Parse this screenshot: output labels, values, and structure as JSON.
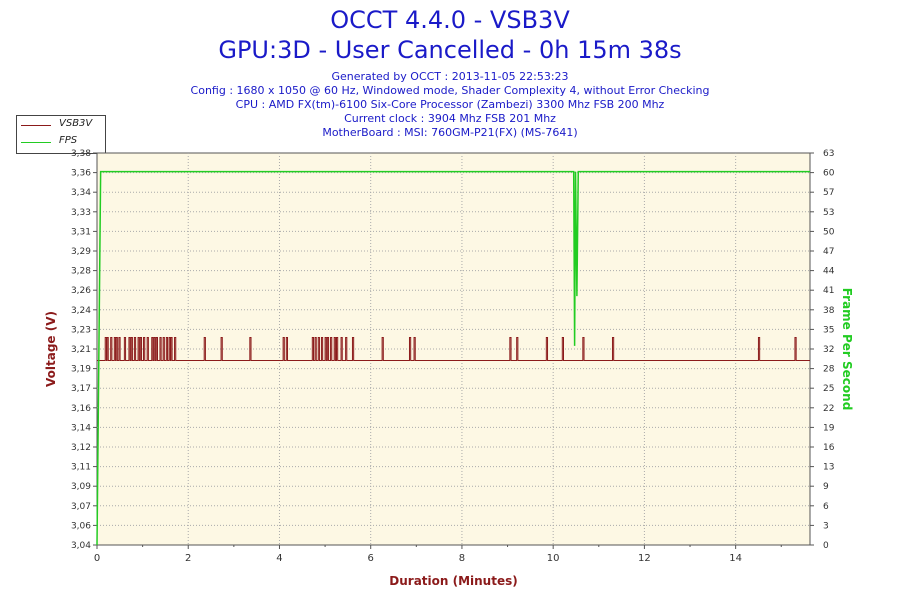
{
  "title": "OCCT 4.4.0 - VSB3V",
  "subtitle": "GPU:3D - User Cancelled - 0h 15m 38s",
  "info_lines": [
    "Generated by OCCT : 2013-11-05 22:53:23",
    "Config : 1680 x 1050 @ 60 Hz, Windowed mode, Shader Complexity 4, without Error Checking",
    "CPU : AMD FX(tm)-6100 Six-Core Processor (Zambezi) 3300 Mhz FSB 200 Mhz",
    "Current clock : 3904 Mhz FSB 201 Mhz",
    "MotherBoard : MSI: 760GM-P21(FX) (MS-7641)"
  ],
  "legend": [
    {
      "label": "VSB3V",
      "color": "#8b1a1a"
    },
    {
      "label": "FPS",
      "color": "#22cc22"
    }
  ],
  "chart_data": {
    "type": "line",
    "xlabel": "Duration (Minutes)",
    "ylabel_left": "Voltage (V)",
    "ylabel_right": "Frame Per Second",
    "xlim": [
      0,
      15.63
    ],
    "ylim_left": [
      3.04,
      3.38
    ],
    "ylim_right": [
      0,
      63
    ],
    "x_ticks": [
      "0",
      "2",
      "4",
      "6",
      "8",
      "10",
      "12",
      "14"
    ],
    "y_ticks_left": [
      "3,04",
      "3,06",
      "3,07",
      "3,09",
      "3,11",
      "3,12",
      "3,14",
      "3,16",
      "3,17",
      "3,19",
      "3,21",
      "3,23",
      "3,24",
      "3,26",
      "3,28",
      "3,29",
      "3,31",
      "3,33",
      "3,34",
      "3,36",
      "3,38"
    ],
    "y_ticks_right": [
      "0",
      "3",
      "6",
      "9",
      "13",
      "16",
      "19",
      "22",
      "25",
      "28",
      "32",
      "35",
      "38",
      "41",
      "44",
      "47",
      "50",
      "53",
      "57",
      "60",
      "63"
    ],
    "grid": true,
    "colors": {
      "plot_bg": "#fdf8e4",
      "grid": "#aaaaaa",
      "voltage": "#8b1a1a",
      "fps": "#22cc22",
      "xlabel": "#8b1a1a",
      "ylabel_left": "#8b1a1a",
      "ylabel_right": "#22cc22"
    },
    "series": [
      {
        "name": "VSB3V",
        "axis": "left",
        "baseline": 3.2,
        "spike_value": 3.22,
        "spike_times": [
          0.18,
          0.22,
          0.3,
          0.38,
          0.42,
          0.48,
          0.6,
          0.7,
          0.75,
          0.82,
          0.9,
          0.95,
          1.02,
          1.1,
          1.2,
          1.25,
          1.3,
          1.38,
          1.45,
          1.52,
          1.58,
          1.62,
          1.7,
          2.35,
          2.72,
          3.35,
          4.08,
          4.15,
          4.72,
          4.78,
          4.85,
          4.92,
          5.0,
          5.05,
          5.12,
          5.2,
          5.25,
          5.35,
          5.45,
          5.6,
          6.25,
          6.85,
          6.95,
          9.05,
          9.2,
          9.85,
          10.2,
          10.65,
          11.3,
          14.5,
          15.3
        ]
      },
      {
        "name": "FPS",
        "axis": "right",
        "points": [
          [
            0,
            0
          ],
          [
            0.08,
            60
          ],
          [
            10.45,
            60
          ],
          [
            10.47,
            32
          ],
          [
            10.49,
            60
          ],
          [
            10.52,
            40
          ],
          [
            10.55,
            60
          ],
          [
            15.63,
            60
          ]
        ]
      }
    ]
  }
}
